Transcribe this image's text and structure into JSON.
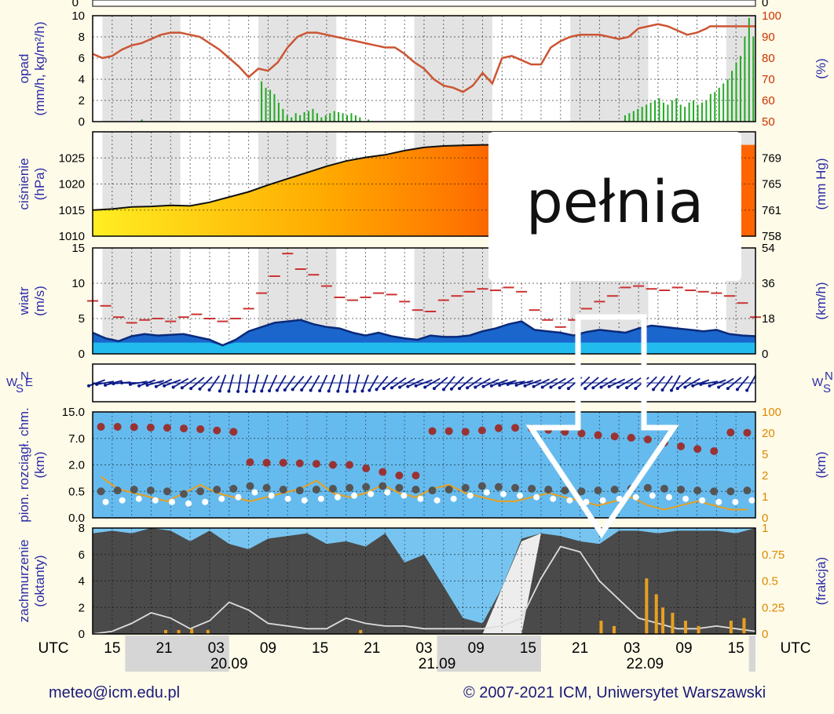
{
  "colors": {
    "axis_label": "#2b2ba8",
    "humidity_line": "#cc5533",
    "precip_bar": "#22aa22",
    "pressure_line": "#111111",
    "wind_gust": "#cc3333",
    "cloud_line": "#e8a020",
    "night_band": "#d9d9d9"
  },
  "chart_data": [
    {
      "type": "bar",
      "panel": "precipitation",
      "ylabel": "opad\n(mm/h, kg/m²/h)",
      "ylabel_right": "(%)",
      "ylim": [
        0,
        10
      ],
      "ylim_right": [
        50,
        100
      ],
      "yticks": [
        "0",
        "2",
        "4",
        "6",
        "8",
        "10"
      ],
      "yticks_right": [
        "50",
        "60",
        "70",
        "80",
        "90",
        "100"
      ],
      "precip_values": [
        0,
        0,
        0,
        0,
        0,
        0,
        0,
        0,
        0,
        0,
        0,
        0.2,
        0,
        0,
        0,
        0,
        0,
        0,
        0,
        0,
        0,
        0,
        0,
        0,
        0,
        0,
        0,
        0,
        0,
        0,
        0,
        0,
        0,
        0,
        0,
        0,
        0,
        0,
        0,
        3.8,
        3.2,
        3.0,
        2.6,
        1.8,
        1.2,
        0.6,
        0.4,
        0.8,
        0.6,
        0.9,
        1.0,
        1.2,
        0.8,
        0.4,
        0.6,
        0.8,
        1.0,
        0.9,
        0.8,
        0.6,
        0.8,
        0.6,
        0.4,
        0,
        0.2,
        0,
        0,
        0,
        0,
        0,
        0,
        0,
        0,
        0,
        0,
        0,
        0,
        0,
        0,
        0,
        0,
        0,
        0,
        0,
        0,
        0,
        0,
        0,
        0,
        0,
        0,
        0,
        0,
        0,
        0,
        0,
        0,
        0,
        0,
        0,
        0,
        0,
        0,
        0,
        0,
        0,
        0,
        0,
        0,
        0,
        0,
        0,
        0,
        0,
        0,
        0,
        0,
        0,
        0,
        0,
        0,
        0,
        0,
        0,
        0.6,
        0.8,
        1.0,
        1.2,
        1.4,
        1.6,
        1.8,
        2.0,
        2.2,
        1.8,
        1.6,
        2.0,
        2.2,
        1.6,
        1.4,
        1.8,
        2.0,
        1.6,
        1.8,
        2.0,
        2.6,
        2.8,
        3.2,
        3.6,
        4.0,
        4.8,
        5.6,
        6.2,
        8.0,
        9.8,
        8.0
      ],
      "humidity_values": [
        82,
        80,
        81,
        84,
        86,
        87,
        89,
        91,
        92,
        92,
        91,
        90,
        87,
        84,
        80,
        76,
        71,
        75,
        74,
        78,
        85,
        90,
        92,
        92,
        91,
        90,
        89,
        88,
        87,
        86,
        85,
        85,
        82,
        78,
        75,
        70,
        67,
        66,
        64,
        67,
        73,
        68,
        80,
        81,
        79,
        77,
        77,
        85,
        88,
        90,
        91,
        91,
        91,
        90,
        89,
        90,
        94,
        95,
        96,
        95,
        93,
        91,
        92,
        94,
        95,
        95,
        95,
        95,
        95,
        95,
        95,
        95,
        95,
        95,
        95,
        95,
        95,
        95,
        95
      ],
      "humidity_x_hours": [
        0,
        3,
        6,
        9,
        12,
        15,
        18,
        21,
        24,
        27,
        30,
        33,
        36,
        39,
        42,
        45,
        48,
        51,
        54,
        57,
        60,
        63,
        66,
        69,
        72,
        75,
        78,
        81,
        84,
        87,
        90,
        93,
        96,
        99,
        102,
        105,
        108,
        111,
        114,
        117,
        120,
        123,
        126,
        129,
        132,
        135,
        138,
        141,
        144,
        147,
        150,
        153,
        156,
        159,
        162,
        165,
        168,
        171,
        174,
        177,
        180,
        183,
        186,
        189,
        190,
        191,
        192,
        193,
        194,
        195,
        196,
        197,
        198,
        199,
        200,
        201,
        202,
        203,
        204
      ]
    },
    {
      "type": "area",
      "panel": "pressure",
      "ylabel": "ciśnienie\n(hPa)",
      "ylabel_right": "(mm Hg)",
      "ylim": [
        1010,
        1030
      ],
      "yticks": [
        "1010",
        "1015",
        "1020",
        "1025"
      ],
      "yticks_right": [
        "758",
        "761",
        "765",
        "769"
      ],
      "x_hours": [
        0,
        6,
        12,
        18,
        24,
        30,
        36,
        42,
        48,
        54,
        60,
        66,
        72,
        78,
        84,
        90,
        96,
        102,
        108,
        114,
        120,
        126
      ],
      "values": [
        1015,
        1015.2,
        1015.6,
        1015.7,
        1015.9,
        1015.8,
        1016.5,
        1017.5,
        1018.5,
        1019.8,
        1021.0,
        1022.2,
        1023.4,
        1024.4,
        1025.1,
        1025.6,
        1026.4,
        1027.0,
        1027.3,
        1027.4,
        1027.5,
        1027.5
      ]
    },
    {
      "type": "area",
      "panel": "wind",
      "ylabel": "wiatr\n(m/s)",
      "ylabel_right": "(km/h)",
      "ylim": [
        0,
        15
      ],
      "yticks": [
        "0",
        "5",
        "10",
        "15"
      ],
      "yticks_right": [
        "0",
        "18",
        "36",
        "54"
      ],
      "x_hours": [
        0,
        4,
        8,
        12,
        16,
        20,
        24,
        28,
        32,
        36,
        40,
        44,
        48,
        52,
        56,
        60,
        64,
        68,
        72,
        76,
        80,
        84,
        88,
        92,
        96,
        100,
        104,
        108,
        112,
        116,
        120,
        124,
        128,
        132,
        136,
        140,
        144,
        148,
        152,
        156,
        160,
        164,
        168,
        172,
        176,
        180,
        184,
        188,
        192,
        196,
        200,
        204
      ],
      "mean_values": [
        3,
        2.2,
        1.8,
        2.5,
        2.8,
        2.6,
        2.7,
        2.8,
        2.4,
        2.0,
        1.2,
        2.0,
        3.2,
        3.8,
        4.4,
        4.6,
        4.8,
        4.2,
        3.8,
        3.6,
        3.0,
        2.6,
        3.0,
        2.5,
        2.2,
        2.0,
        2.6,
        2.4,
        2.4,
        2.6,
        3.2,
        3.6,
        4.2,
        4.6,
        3.4,
        3.2,
        3.0,
        2.6,
        3.1,
        3.4,
        3.2,
        3.0,
        3.6,
        4.0,
        3.8,
        3.6,
        3.4,
        3.2,
        3.4,
        2.8,
        2.6,
        2.5
      ],
      "gust_values": [
        7.5,
        6.8,
        5.2,
        4.4,
        4.8,
        5.0,
        4.6,
        5.2,
        5.6,
        5.0,
        4.6,
        5.0,
        6.4,
        8.6,
        11.0,
        14.2,
        12.0,
        11.2,
        9.6,
        8.0,
        7.6,
        8.0,
        8.6,
        8.4,
        7.4,
        6.2,
        6.0,
        7.6,
        8.2,
        8.8,
        9.2,
        9.0,
        9.4,
        8.8,
        6.2,
        4.8,
        3.8,
        4.8,
        6.4,
        7.4,
        8.2,
        9.4,
        9.6,
        9.2,
        9.0,
        9.4,
        9.0,
        8.8,
        8.6,
        8.2,
        7.2,
        5.2
      ]
    },
    {
      "type": "line",
      "panel": "wind_direction",
      "ylabel": "W S N E",
      "directions_deg": [
        250,
        260,
        255,
        265,
        270,
        260,
        250,
        255,
        245,
        250,
        240,
        235,
        230,
        225,
        215,
        200,
        195,
        190,
        190,
        195,
        200,
        205,
        210,
        215,
        220,
        215,
        210,
        205,
        200,
        195,
        190,
        195,
        200,
        210,
        220,
        230,
        235,
        240,
        245,
        250,
        240,
        230,
        220,
        225,
        230,
        235,
        240,
        245,
        250,
        255,
        260,
        255,
        250,
        245,
        240,
        240,
        235,
        230,
        225,
        230,
        235,
        240,
        245,
        240,
        235,
        230,
        225,
        220,
        215,
        210,
        230,
        240,
        250,
        260,
        250,
        240,
        230,
        220,
        210
      ]
    },
    {
      "type": "scatter",
      "panel": "cloud_base",
      "ylabel": "pion. rozciągł. chm.\n(km)",
      "ylabel_right": "(km)",
      "yticks": [
        "0.0",
        "0.5",
        "2.0",
        "7.0",
        "15.0"
      ],
      "yticks_right": [
        "0",
        "1",
        "2",
        "5",
        "20",
        "100"
      ],
      "top_values": [
        10.5,
        10.5,
        10.4,
        10.3,
        10.2,
        10.0,
        9.8,
        9.4,
        9.0,
        2.5,
        2.4,
        2.4,
        2.3,
        2.2,
        2.0,
        2.0,
        1.8,
        1.6,
        1.4,
        1.4,
        9.2,
        9.2,
        9.0,
        9.4,
        10.1,
        10.2,
        10.0,
        9.6,
        9.0,
        8.5,
        8.0,
        7.6,
        7.2,
        6.8,
        6.2,
        5.5,
        5.0,
        4.6,
        8.8,
        8.7
      ],
      "base_values": [
        0.5,
        0.55,
        0.6,
        0.55,
        0.5,
        0.45,
        0.5,
        0.6,
        0.65,
        0.8,
        0.7,
        0.6,
        0.55,
        0.6,
        0.65,
        0.7,
        0.75,
        0.8,
        0.7,
        0.6,
        0.55,
        0.6,
        0.7,
        0.8,
        0.75,
        0.7,
        0.65,
        0.6,
        0.55,
        0.5,
        0.55,
        0.6,
        0.65,
        0.7,
        0.65,
        0.6,
        0.55,
        0.5,
        0.5,
        0.55
      ],
      "vis_values": [
        10,
        7,
        6,
        5,
        4,
        6,
        8,
        6,
        5,
        4,
        5,
        6,
        7,
        9,
        6,
        5,
        6,
        8,
        6,
        5,
        7,
        8,
        6,
        5,
        4,
        4,
        5,
        6,
        5,
        4,
        3,
        4,
        5,
        3,
        2,
        3,
        4,
        3,
        2,
        2
      ]
    },
    {
      "type": "area",
      "panel": "cloud_cover",
      "ylabel": "zachmurzenie\n(oktanty)",
      "ylabel_right": "(frakcja)",
      "ylim": [
        0,
        8
      ],
      "yticks": [
        "0",
        "2",
        "4",
        "6",
        "8"
      ],
      "yticks_right": [
        "0",
        "0.25",
        "0.5",
        "0.75",
        "1"
      ],
      "x_hours": [
        0,
        6,
        12,
        18,
        24,
        30,
        36,
        42,
        48,
        54,
        60,
        66,
        72,
        78,
        84,
        90,
        96,
        102,
        108,
        114,
        120,
        126,
        132,
        138,
        144,
        150,
        156,
        162,
        168,
        174,
        180,
        186,
        192,
        198,
        204
      ],
      "values": [
        7.6,
        7.8,
        7.6,
        8.0,
        7.8,
        7.0,
        7.8,
        6.8,
        6.4,
        7.2,
        7.4,
        7.6,
        6.8,
        7.0,
        6.6,
        7.6,
        5.4,
        6.0,
        3.6,
        1.2,
        0.8,
        3.5,
        7.2,
        7.6,
        7.4,
        7.0,
        6.8,
        7.8,
        7.8,
        7.6,
        7.8,
        7.8,
        7.8,
        7.6,
        8.0
      ],
      "low_cloud_line": [
        0,
        0.2,
        0.8,
        1.6,
        1.2,
        0.4,
        1.0,
        2.4,
        1.8,
        0.8,
        0.6,
        0.4,
        0.4,
        1.2,
        0.8,
        0.6,
        0.6,
        0.4,
        0.4,
        0.4,
        0.4,
        0.6,
        1.2,
        4.2,
        6.6,
        6.2,
        4.0,
        2.6,
        1.2,
        0.8,
        0.4,
        0.4,
        0.6,
        0.4,
        0.2
      ]
    }
  ],
  "time_axis": {
    "utc_label": "UTC",
    "hour_ticks": [
      "15",
      "21",
      "03",
      "09",
      "15",
      "21",
      "03",
      "09",
      "15",
      "21",
      "03",
      "09",
      "15"
    ],
    "dates": [
      "20.09",
      "21.09",
      "22.09"
    ]
  },
  "annotation": {
    "callout_text": "pełnia"
  },
  "footer": {
    "email": "meteo@icm.edu.pl",
    "copyright": "© 2007-2021 ICM, Uniwersytet Warszawski"
  }
}
